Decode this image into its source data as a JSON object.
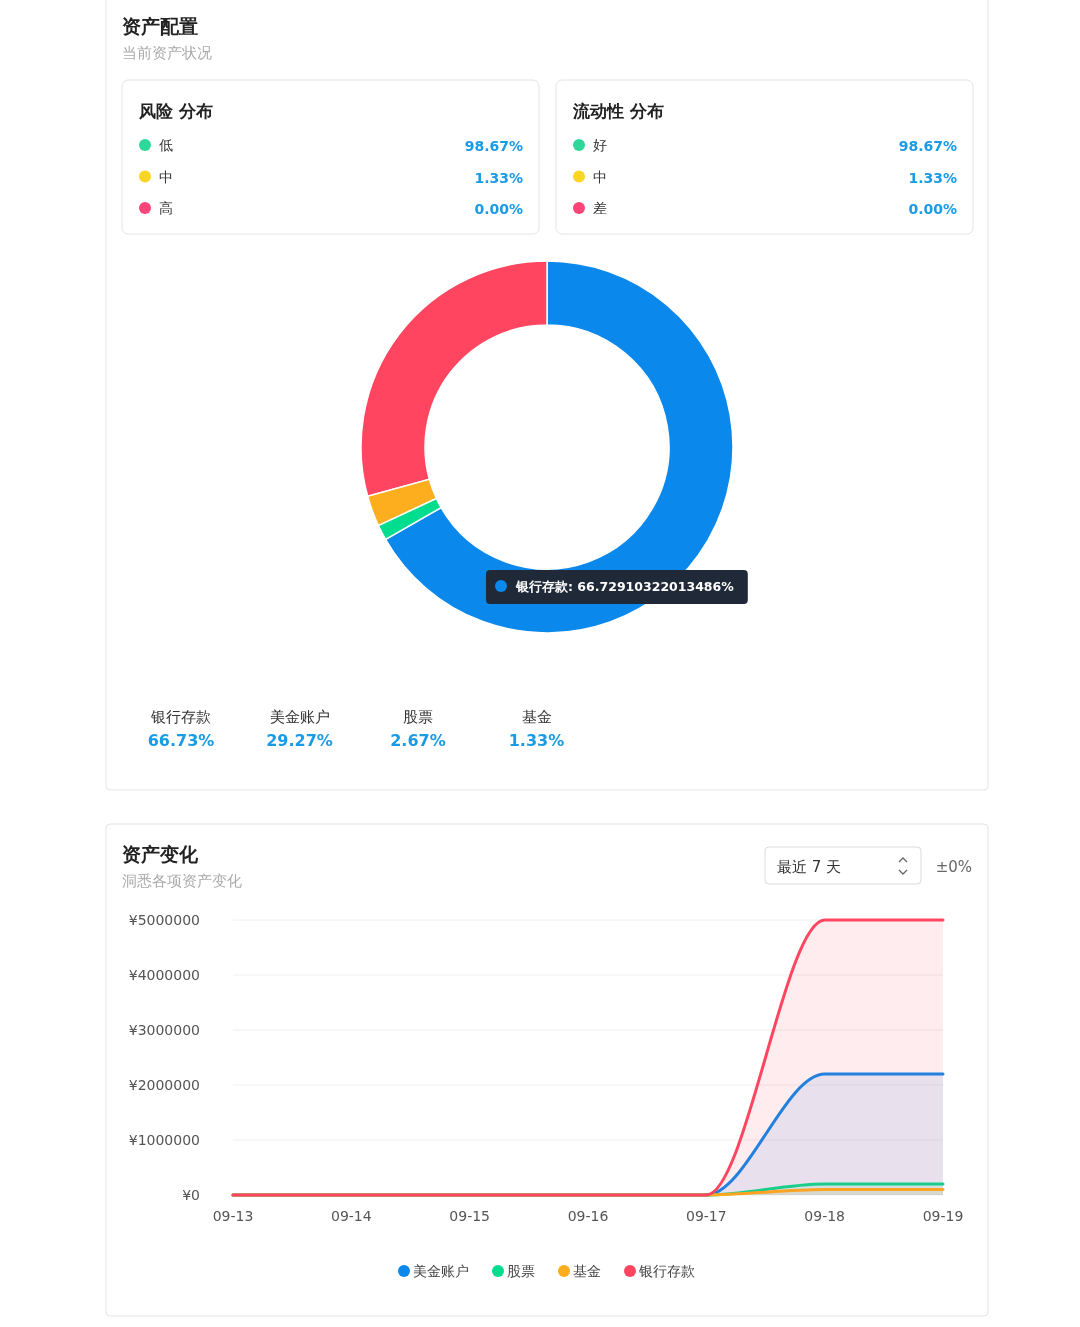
{
  "chart_data": [
    {
      "type": "other",
      "title": "资产配置",
      "subtitle": "当前资产状况"
    },
    {
      "type": "other",
      "title": "风险 分布",
      "categories": [
        "低",
        "中",
        "高"
      ],
      "values": [
        98.67,
        1.33,
        0
      ],
      "colors": [
        "#2ed89a",
        "#fad624",
        "#ff4477"
      ],
      "value_labels": [
        "98.67%",
        "1.33%",
        "0.00%"
      ]
    },
    {
      "type": "other",
      "title": "流动性 分布",
      "categories": [
        "好",
        "中",
        "差"
      ],
      "values": [
        98.67,
        1.33,
        0
      ],
      "colors": [
        "#2ed89a",
        "#fad624",
        "#ff4477"
      ],
      "value_labels": [
        "98.67%",
        "1.33%",
        "0.00%"
      ]
    },
    {
      "type": "donut",
      "categories": [
        null,
        null,
        null,
        null
      ],
      "values": [
        66.73,
        29.27,
        2.67,
        1.33
      ],
      "colors": [
        "#0a88ec",
        "#ff455f",
        "#fcae1e",
        "#00dd8f"
      ],
      "annotations": [
        "银行存款:  66.72910322013486%"
      ]
    },
    {
      "type": "other",
      "categories": [
        "银行存款",
        "美金账户",
        "股票",
        "基金"
      ],
      "values": [
        66.73,
        29.27,
        2.67,
        1.33
      ],
      "value_labels": [
        "66.73%",
        "29.27%",
        "2.67%",
        "1.33%"
      ]
    },
    {
      "type": "area",
      "title": "资产变化",
      "subtitle": "洞悉各项资产变化",
      "annotations": [
        "最近 7 天",
        "±0%"
      ],
      "categories": [
        "09-13",
        "09-14",
        "09-15",
        "09-16",
        "09-17",
        "09-18",
        "09-19"
      ],
      "series": [
        {
          "name": "美金账户",
          "color": "#0a88ec",
          "values": [
            0,
            0,
            0,
            0,
            0,
            2200000,
            2200000
          ]
        },
        {
          "name": "股票",
          "color": "#00dd8f",
          "values": [
            0,
            0,
            0,
            0,
            0,
            200000,
            200000
          ]
        },
        {
          "name": "基金",
          "color": "#fcae1e",
          "values": [
            0,
            0,
            0,
            0,
            0,
            100000,
            100000
          ]
        },
        {
          "name": "银行存款",
          "color": "#ff455f",
          "values": [
            0,
            0,
            0,
            0,
            0,
            5000000,
            5000000
          ]
        }
      ],
      "ylim": [
        0,
        5000000
      ],
      "yticks": [
        {
          "value": 0,
          "label": "¥0"
        },
        {
          "value": 1000000,
          "label": "¥1000000"
        },
        {
          "value": 2000000,
          "label": "¥2000000"
        },
        {
          "value": 3000000,
          "label": "¥3000000"
        },
        {
          "value": 4000000,
          "label": "¥4000000"
        },
        {
          "value": 5000000,
          "label": "¥5000000"
        }
      ],
      "grid": "y",
      "legend": "bottom"
    }
  ]
}
